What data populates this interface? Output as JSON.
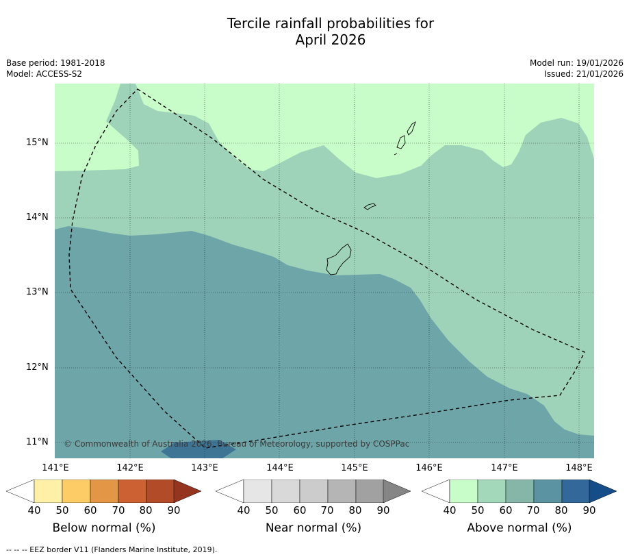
{
  "title": {
    "line1": "Tercile rainfall probabilities for",
    "line2": "April 2026"
  },
  "meta_left": {
    "base_period": "Base period: 1981-2018",
    "model": "Model: ACCESS-S2"
  },
  "meta_right": {
    "model_run": "Model run: 19/01/2026",
    "issued": "Issued: 21/01/2026"
  },
  "map": {
    "latitude_labels": [
      "15°N",
      "14°N",
      "13°N",
      "12°N",
      "11°N"
    ],
    "longitude_labels": [
      "141°E",
      "142°E",
      "143°E",
      "144°E",
      "145°E",
      "146°E",
      "147°E",
      "148°E"
    ],
    "copyright": "© Commonwealth of Australia 2026, Bureau of Meteorology, supported by COSPPac",
    "colors": {
      "above_40_50": "#c8fcc8",
      "above_50_60": "#9fd3b9",
      "above_70_80": "#6ea5a8",
      "above_80_90": "#3e7595",
      "land_outline": "#000000",
      "eez_border": "#000000"
    }
  },
  "legends": [
    {
      "label": "Below normal (%)",
      "ticks": [
        "40",
        "50",
        "60",
        "70",
        "80",
        "90"
      ],
      "colors": [
        "#ffffff",
        "#fff0a8",
        "#fecc66",
        "#e39746",
        "#cc6133",
        "#b24b28",
        "#953520"
      ]
    },
    {
      "label": "Near normal (%)",
      "ticks": [
        "40",
        "50",
        "60",
        "70",
        "80",
        "90"
      ],
      "colors": [
        "#ffffff",
        "#e6e6e6",
        "#d9d9d9",
        "#cccccc",
        "#b5b5b5",
        "#a1a1a1",
        "#858585"
      ]
    },
    {
      "label": "Above normal (%)",
      "ticks": [
        "40",
        "50",
        "60",
        "70",
        "80",
        "90"
      ],
      "colors": [
        "#ffffff",
        "#c8fcc8",
        "#a3d8bb",
        "#85b6a8",
        "#5b93a2",
        "#33689a",
        "#154d89"
      ]
    }
  ],
  "footer": "--  --  -- EEZ border V11 (Flanders Marine Institute, 2019)."
}
